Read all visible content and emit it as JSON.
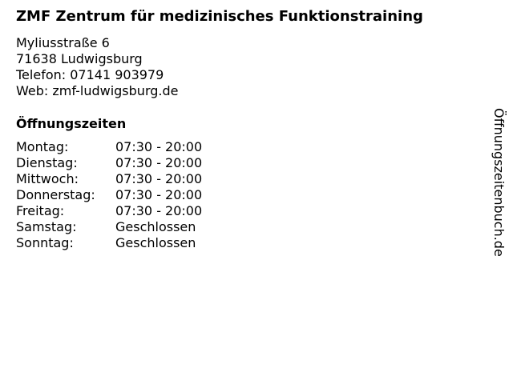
{
  "title": "ZMF Zentrum für medizinisches Funktionstraining",
  "address": {
    "street": "Myliusstraße 6",
    "city": "71638 Ludwigsburg",
    "phone": "Telefon: 07141 903979",
    "web": "Web: zmf-ludwigsburg.de"
  },
  "hours_heading": "Öffnungszeiten",
  "hours": [
    {
      "day": "Montag:",
      "time": "07:30 - 20:00"
    },
    {
      "day": "Dienstag:",
      "time": "07:30 - 20:00"
    },
    {
      "day": "Mittwoch:",
      "time": "07:30 - 20:00"
    },
    {
      "day": "Donnerstag:",
      "time": "07:30 - 20:00"
    },
    {
      "day": "Freitag:",
      "time": "07:30 - 20:00"
    },
    {
      "day": "Samstag:",
      "time": "Geschlossen"
    },
    {
      "day": "Sonntag:",
      "time": "Geschlossen"
    }
  ],
  "side_label": "Öffnungszeitenbuch.de"
}
